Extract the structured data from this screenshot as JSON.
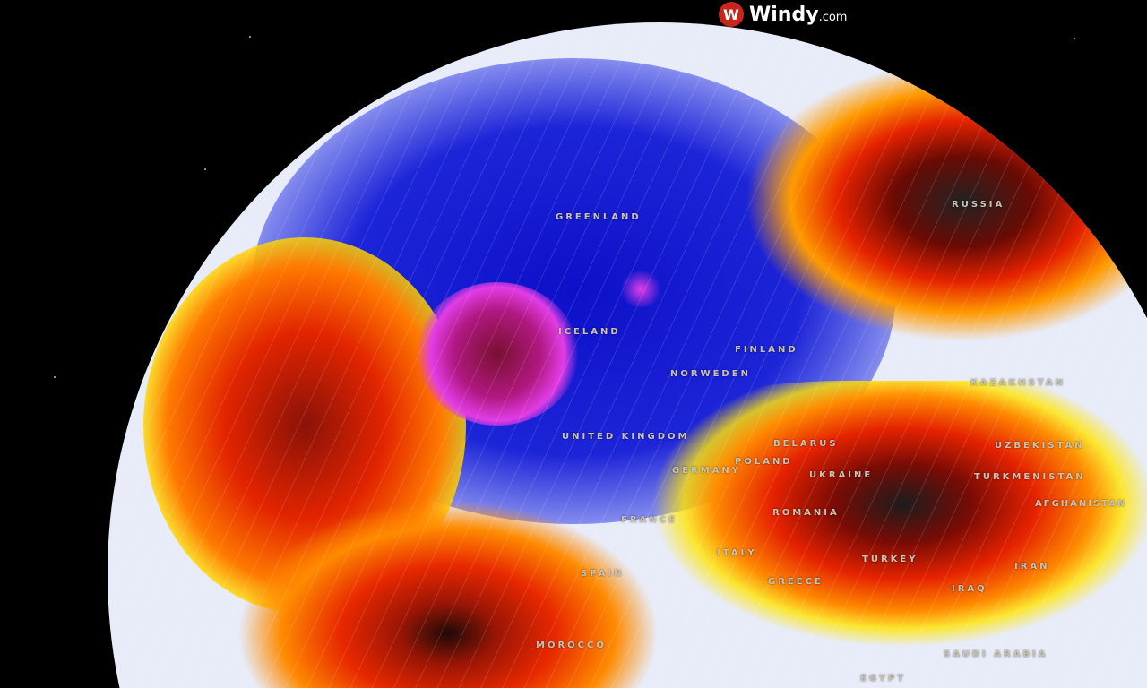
{
  "brand": {
    "logo_mark": "W",
    "name": "Windy",
    "suffix": ".com"
  },
  "colors": {
    "cold": "#1a1fd0",
    "extreme_cold": "#e23ce6",
    "warm": "#ff2a00",
    "hot": "#2a2a2a",
    "mild": "#ffe500",
    "neutral": "#e8ecf8"
  },
  "labels": {
    "greenland": "GREENLAND",
    "russia": "RUSSIA",
    "iceland": "ICELAND",
    "finland": "FINLAND",
    "norway_sweden": "NORWEDEN",
    "united_kingdom": "UNITED KINGDOM",
    "belarus": "BELARUS",
    "poland": "POLAND",
    "germany": "GERMANY",
    "ukraine": "UKRAINE",
    "kazakhstan": "KAZAKHSTAN",
    "uzbekistan": "UZBEKISTAN",
    "turkmenistan": "TURKMENISTAN",
    "afghanistan": "AFGHANISTAN",
    "romania": "ROMANIA",
    "france": "FRANCE",
    "italy": "ITALY",
    "spain": "SPAIN",
    "greece": "GREECE",
    "turkey": "TURKEY",
    "iran": "IRAN",
    "iraq": "IRAQ",
    "morocco": "MOROCCO",
    "saudi_arabia": "SAUDI ARABIA",
    "egypt": "EGYPT"
  }
}
